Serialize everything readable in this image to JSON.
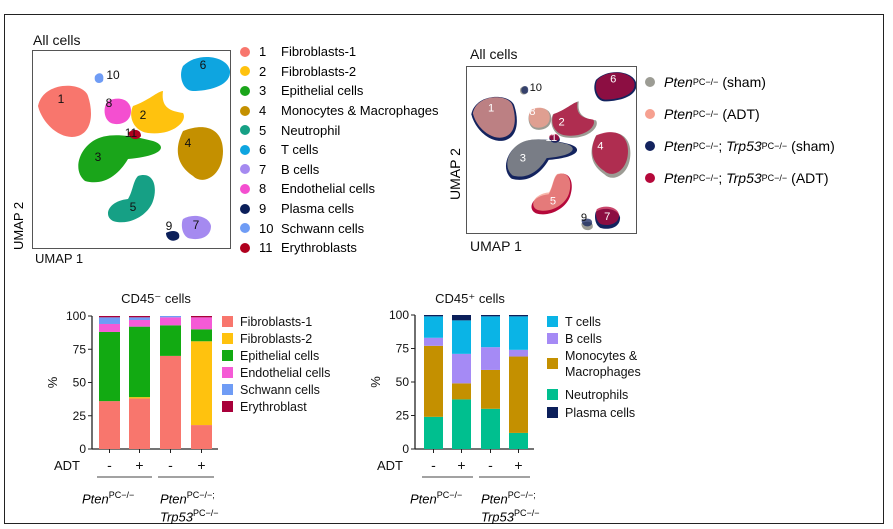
{
  "umap_clusters": {
    "title": "All cells",
    "xlabel": "UMAP 1",
    "ylabel": "UMAP 2",
    "legend": [
      {
        "num": "1",
        "label": "Fibroblasts-1",
        "color": "#f8766d"
      },
      {
        "num": "2",
        "label": "Fibroblasts-2",
        "color": "#ffc20e"
      },
      {
        "num": "3",
        "label": "Epithelial cells",
        "color": "#1aa51a"
      },
      {
        "num": "4",
        "label": "Monocytes & Macrophages",
        "color": "#c49000"
      },
      {
        "num": "5",
        "label": "Neutrophil",
        "color": "#16a085"
      },
      {
        "num": "6",
        "label": "T cells",
        "color": "#0ea5e0"
      },
      {
        "num": "7",
        "label": "B cells",
        "color": "#a58af0"
      },
      {
        "num": "8",
        "label": "Endothelial cells",
        "color": "#f44fd0"
      },
      {
        "num": "9",
        "label": "Plasma cells",
        "color": "#0b1f5a"
      },
      {
        "num": "10",
        "label": "Schwann cells",
        "color": "#6f9cf5"
      },
      {
        "num": "11",
        "label": "Erythroblasts",
        "color": "#b0001e"
      }
    ]
  },
  "umap_conditions": {
    "title": "All cells",
    "xlabel": "UMAP 1",
    "ylabel": "UMAP 2",
    "legend": [
      {
        "gene1": "Pten",
        "sup1": "PC−/−",
        "gene2": "",
        "sup2": "",
        "cond": "(sham)",
        "color": "#9c9c94"
      },
      {
        "gene1": "Pten",
        "sup1": "PC−/−",
        "gene2": "",
        "sup2": "",
        "cond": "(ADT)",
        "color": "#f6a090"
      },
      {
        "gene1": "Pten",
        "sup1": "PC−/−",
        "gene2": "Trp53",
        "sup2": "PC−/−",
        "cond": "(sham)",
        "color": "#13235e"
      },
      {
        "gene1": "Pten",
        "sup1": "PC−/−",
        "gene2": "Trp53",
        "sup2": "PC−/−",
        "cond": "(ADT)",
        "color": "#b5083a"
      }
    ]
  },
  "groups": {
    "adt_label": "ADT",
    "adt_values": [
      "-",
      "+",
      "-",
      "+"
    ],
    "group1": {
      "gene": "Pten",
      "sup": "PC−/−"
    },
    "group2": {
      "gene1": "Pten",
      "sup1": "PC−/−;",
      "gene2": "Trp53",
      "sup2": "PC−/−"
    }
  },
  "chart_data": [
    {
      "type": "bar",
      "stacked": true,
      "title": "CD45⁻ cells",
      "ylabel": "%",
      "ylim": [
        0,
        100
      ],
      "yticks": [
        0,
        25,
        50,
        75,
        100
      ],
      "categories": [
        "Pten PC−/− ADT −",
        "Pten PC−/− ADT +",
        "Pten PC−/−; Trp53 PC−/− ADT −",
        "Pten PC−/−; Trp53 PC−/− ADT +"
      ],
      "legend_position": "right",
      "series": [
        {
          "name": "Fibroblasts-1",
          "color": "#f8766d",
          "values": [
            36,
            38,
            70,
            18
          ]
        },
        {
          "name": "Fibroblasts-2",
          "color": "#ffc20e",
          "values": [
            0,
            1,
            0,
            63
          ]
        },
        {
          "name": "Epithelial cells",
          "color": "#12aa12",
          "values": [
            52,
            53,
            23,
            9
          ]
        },
        {
          "name": "Endothelial cells",
          "color": "#f55ad6",
          "values": [
            6,
            5,
            6,
            9
          ]
        },
        {
          "name": "Schwann cells",
          "color": "#6f9cf5",
          "values": [
            5,
            2,
            1,
            0
          ]
        },
        {
          "name": "Erythroblast",
          "color": "#a8003a",
          "values": [
            1,
            1,
            0,
            1
          ]
        }
      ]
    },
    {
      "type": "bar",
      "stacked": true,
      "title": "CD45⁺ cells",
      "ylabel": "%",
      "ylim": [
        0,
        100
      ],
      "yticks": [
        0,
        25,
        50,
        75,
        100
      ],
      "categories": [
        "Pten PC−/− ADT −",
        "Pten PC−/− ADT +",
        "Pten PC−/−; Trp53 PC−/− ADT −",
        "Pten PC−/−; Trp53 PC−/− ADT +"
      ],
      "legend_position": "right",
      "series": [
        {
          "name": "Neutrophils",
          "color": "#00bf8f",
          "values": [
            24,
            37,
            30,
            12
          ]
        },
        {
          "name": "Monocytes & Macrophages",
          "color": "#c49000",
          "values": [
            53,
            12,
            29,
            57
          ]
        },
        {
          "name": "B cells",
          "color": "#a58af5",
          "values": [
            6,
            22,
            17,
            5
          ]
        },
        {
          "name": "T cells",
          "color": "#0ab4e6",
          "values": [
            16,
            25,
            23,
            25
          ]
        },
        {
          "name": "Plasma cells",
          "color": "#0b1f5a",
          "values": [
            1,
            4,
            1,
            1
          ]
        }
      ],
      "legend_order": [
        "T cells",
        "B cells",
        "Monocytes & Macrophages",
        "Neutrophils",
        "Plasma cells"
      ]
    }
  ]
}
